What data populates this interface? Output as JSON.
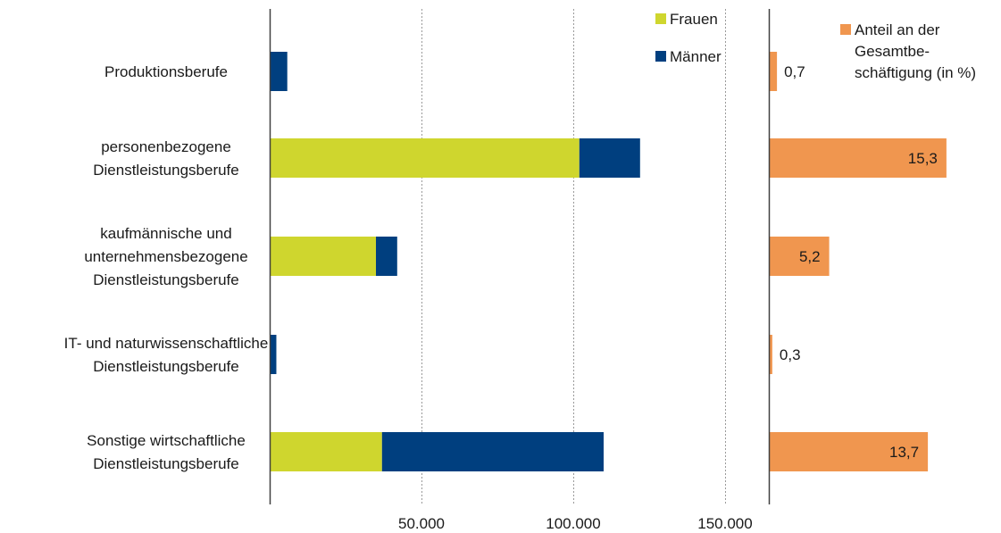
{
  "chart_data": [
    {
      "type": "bar",
      "orientation": "horizontal",
      "stacked": true,
      "categories": [
        [
          "Produktionsberufe"
        ],
        [
          "personenbezogene",
          "Dienstleistungsberufe"
        ],
        [
          "kaufmännische und",
          "unternehmensbezogene",
          "Dienstleistungsberufe"
        ],
        [
          "IT- und naturwissenschaftliche",
          "Dienstleistungsberufe"
        ],
        [
          "Sonstige wirtschaftliche",
          "Dienstleistungsberufe"
        ]
      ],
      "series": [
        {
          "name": "Frauen",
          "color": "#cfd62e",
          "values": [
            300,
            102000,
            35000,
            200,
            37000
          ]
        },
        {
          "name": "Männer",
          "color": "#003f7f",
          "values": [
            5500,
            20000,
            7000,
            2000,
            73000
          ]
        }
      ],
      "xlim": [
        0,
        160000
      ],
      "ticks": [
        50000,
        100000,
        150000
      ],
      "tick_labels": [
        "50.000",
        "100.000",
        "150.000"
      ],
      "grid": "vertical dotted",
      "legend": "top-right of panel"
    },
    {
      "type": "bar",
      "orientation": "horizontal",
      "series": [
        {
          "name": [
            "Anteil an der",
            "Gesamtbe-",
            "schäftigung (in %)"
          ],
          "color": "#f0964f",
          "values": [
            0.7,
            15.3,
            5.2,
            0.3,
            13.7
          ]
        }
      ],
      "value_labels": [
        "0,7",
        "15,3",
        "5,2",
        "0,3",
        "13,7"
      ],
      "xlim": [
        0,
        20
      ],
      "legend": "top-right"
    }
  ]
}
